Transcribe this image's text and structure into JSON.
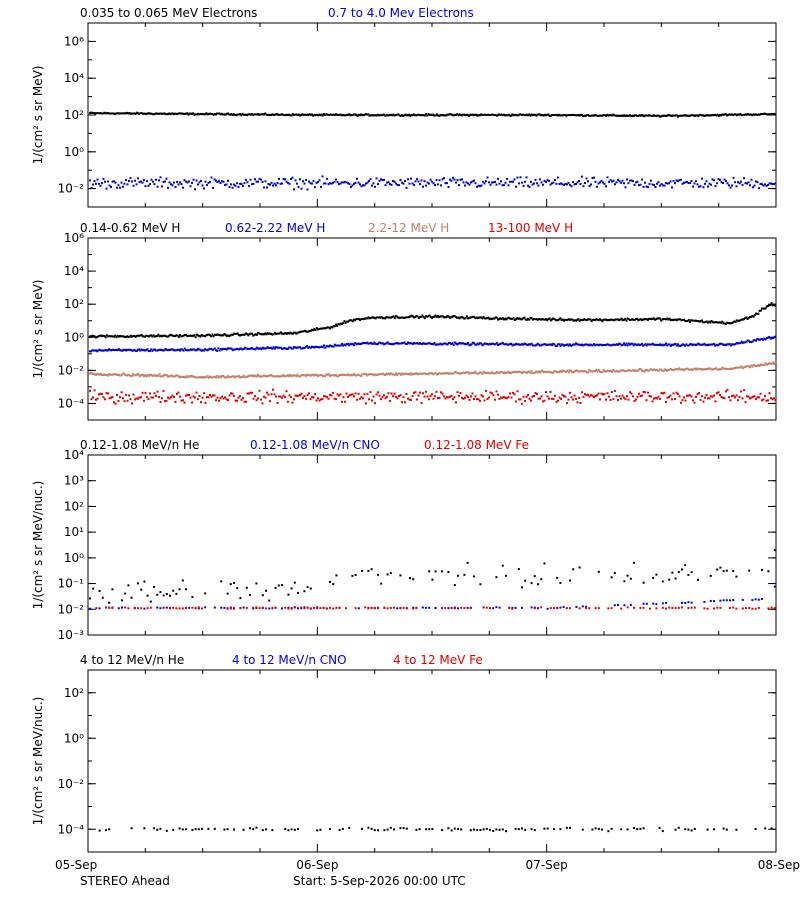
{
  "colors": {
    "black": "#000000",
    "blue": "#0000dd",
    "tan": "#c0806a",
    "red": "#e00000"
  },
  "footer": {
    "left": "STEREO Ahead",
    "start": "Start:  5-Sep-2026 00:00 UTC"
  },
  "x_axis": {
    "ticks": [
      "05-Sep",
      "06-Sep",
      "07-Sep",
      "08-Sep"
    ],
    "range_days": [
      0,
      3
    ]
  },
  "chart_data": [
    {
      "type": "scatter",
      "ylabel": "1/(cm² s sr MeV)",
      "yscale": "log",
      "ylim_exp": [
        -3,
        7
      ],
      "yticks": [
        {
          "exp": -2,
          "label": "10⁻²"
        },
        {
          "exp": 0,
          "label": "10⁰"
        },
        {
          "exp": 2,
          "label": "10²"
        },
        {
          "exp": 4,
          "label": "10⁴"
        },
        {
          "exp": 6,
          "label": "10⁶"
        }
      ],
      "series": [
        {
          "name": "0.035 to 0.065 MeV Electrons",
          "color": "black",
          "style": "line",
          "points": [
            [
              0,
              2.1
            ],
            [
              0.5,
              2.05
            ],
            [
              1.0,
              2.0
            ],
            [
              1.5,
              2.0
            ],
            [
              2.0,
              2.0
            ],
            [
              2.5,
              1.95
            ],
            [
              3.0,
              2.05
            ]
          ],
          "noise": 0.03
        },
        {
          "name": "0.7 to 4.0 Mev Electrons",
          "color": "blue",
          "style": "dots",
          "points": [
            [
              0,
              -1.7
            ],
            [
              1.0,
              -1.7
            ],
            [
              2.0,
              -1.7
            ],
            [
              3.0,
              -1.7
            ]
          ],
          "noise": 0.2
        }
      ]
    },
    {
      "type": "scatter",
      "ylabel": "1/(cm² s sr MeV)",
      "yscale": "log",
      "ylim_exp": [
        -5,
        6
      ],
      "yticks": [
        {
          "exp": -4,
          "label": "10⁻⁴"
        },
        {
          "exp": -2,
          "label": "10⁻²"
        },
        {
          "exp": 0,
          "label": "10⁰"
        },
        {
          "exp": 2,
          "label": "10²"
        },
        {
          "exp": 4,
          "label": "10⁴"
        },
        {
          "exp": 6,
          "label": "10⁶"
        }
      ],
      "series": [
        {
          "name": "0.14-0.62 MeV H",
          "color": "black",
          "style": "line",
          "points": [
            [
              0,
              0.05
            ],
            [
              0.5,
              0.1
            ],
            [
              0.9,
              0.25
            ],
            [
              1.05,
              0.6
            ],
            [
              1.15,
              1.05
            ],
            [
              1.25,
              1.2
            ],
            [
              1.5,
              1.25
            ],
            [
              1.9,
              1.1
            ],
            [
              2.2,
              1.05
            ],
            [
              2.5,
              1.1
            ],
            [
              2.8,
              0.85
            ],
            [
              2.9,
              1.3
            ],
            [
              2.97,
              2.0
            ],
            [
              3.0,
              1.9
            ]
          ],
          "noise": 0.05
        },
        {
          "name": "0.62-2.22 MeV H",
          "color": "blue",
          "style": "line",
          "points": [
            [
              0,
              -0.8
            ],
            [
              0.5,
              -0.75
            ],
            [
              1.0,
              -0.6
            ],
            [
              1.2,
              -0.35
            ],
            [
              2.0,
              -0.45
            ],
            [
              2.8,
              -0.45
            ],
            [
              3.0,
              0.05
            ]
          ],
          "noise": 0.05
        },
        {
          "name": "2.2-12 MeV H",
          "color": "tan",
          "style": "line",
          "points": [
            [
              0,
              -2.2
            ],
            [
              0.5,
              -2.4
            ],
            [
              1.0,
              -2.3
            ],
            [
              2.0,
              -2.1
            ],
            [
              2.8,
              -1.9
            ],
            [
              3.0,
              -1.55
            ]
          ],
          "noise": 0.05
        },
        {
          "name": "13-100 MeV H",
          "color": "red",
          "style": "dots",
          "points": [
            [
              0,
              -3.6
            ],
            [
              1.0,
              -3.6
            ],
            [
              2.0,
              -3.6
            ],
            [
              3.0,
              -3.6
            ]
          ],
          "noise": 0.25
        }
      ]
    },
    {
      "type": "scatter",
      "ylabel": "1/(cm² s sr MeV/nuc.)",
      "yscale": "log",
      "ylim_exp": [
        -3,
        4
      ],
      "yticks": [
        {
          "exp": -3,
          "label": "10⁻³"
        },
        {
          "exp": -2,
          "label": "10⁻²"
        },
        {
          "exp": -1,
          "label": "10⁻¹"
        },
        {
          "exp": 0,
          "label": "10⁰"
        },
        {
          "exp": 1,
          "label": "10¹"
        },
        {
          "exp": 2,
          "label": "10²"
        },
        {
          "exp": 3,
          "label": "10³"
        },
        {
          "exp": 4,
          "label": "10⁴"
        }
      ],
      "series": [
        {
          "name": "0.12-1.08 MeV/n He",
          "color": "black",
          "style": "sparse",
          "points": [
            [
              0,
              -1.3
            ],
            [
              1.0,
              -1.25
            ],
            [
              1.2,
              -0.6
            ],
            [
              2.0,
              -0.6
            ],
            [
              2.9,
              -0.6
            ],
            [
              3.0,
              0.25
            ]
          ],
          "noise": 0.35
        },
        {
          "name": "0.12-1.08 MeV/n CNO",
          "color": "blue",
          "style": "sparse",
          "points": [
            [
              0,
              -1.95
            ],
            [
              1.2,
              -1.95
            ],
            [
              2.0,
              -1.95
            ],
            [
              2.95,
              -1.6
            ],
            [
              3.0,
              -1.0
            ]
          ],
          "noise": 0.02
        },
        {
          "name": "0.12-1.08 MeV Fe",
          "color": "red",
          "style": "sparse",
          "points": [
            [
              0,
              -1.95
            ],
            [
              3.0,
              -1.95
            ]
          ],
          "noise": 0.02
        }
      ]
    },
    {
      "type": "scatter",
      "ylabel": "1/(cm² s sr MeV/nuc.)",
      "yscale": "log",
      "ylim_exp": [
        -5,
        3
      ],
      "yticks": [
        {
          "exp": -4,
          "label": "10⁻⁴"
        },
        {
          "exp": -2,
          "label": "10⁻²"
        },
        {
          "exp": 0,
          "label": "10⁰"
        },
        {
          "exp": 2,
          "label": "10²"
        }
      ],
      "series": [
        {
          "name": "4 to 12 MeV/n He",
          "color": "black",
          "style": "sparse",
          "points": [
            [
              0,
              -4.0
            ],
            [
              3.0,
              -4.0
            ]
          ],
          "noise": 0.05
        },
        {
          "name": "4 to 12 MeV/n CNO",
          "color": "blue",
          "style": "none",
          "points": [],
          "noise": 0
        },
        {
          "name": "4 to 12 MeV Fe",
          "color": "red",
          "style": "none",
          "points": [],
          "noise": 0
        }
      ]
    }
  ]
}
